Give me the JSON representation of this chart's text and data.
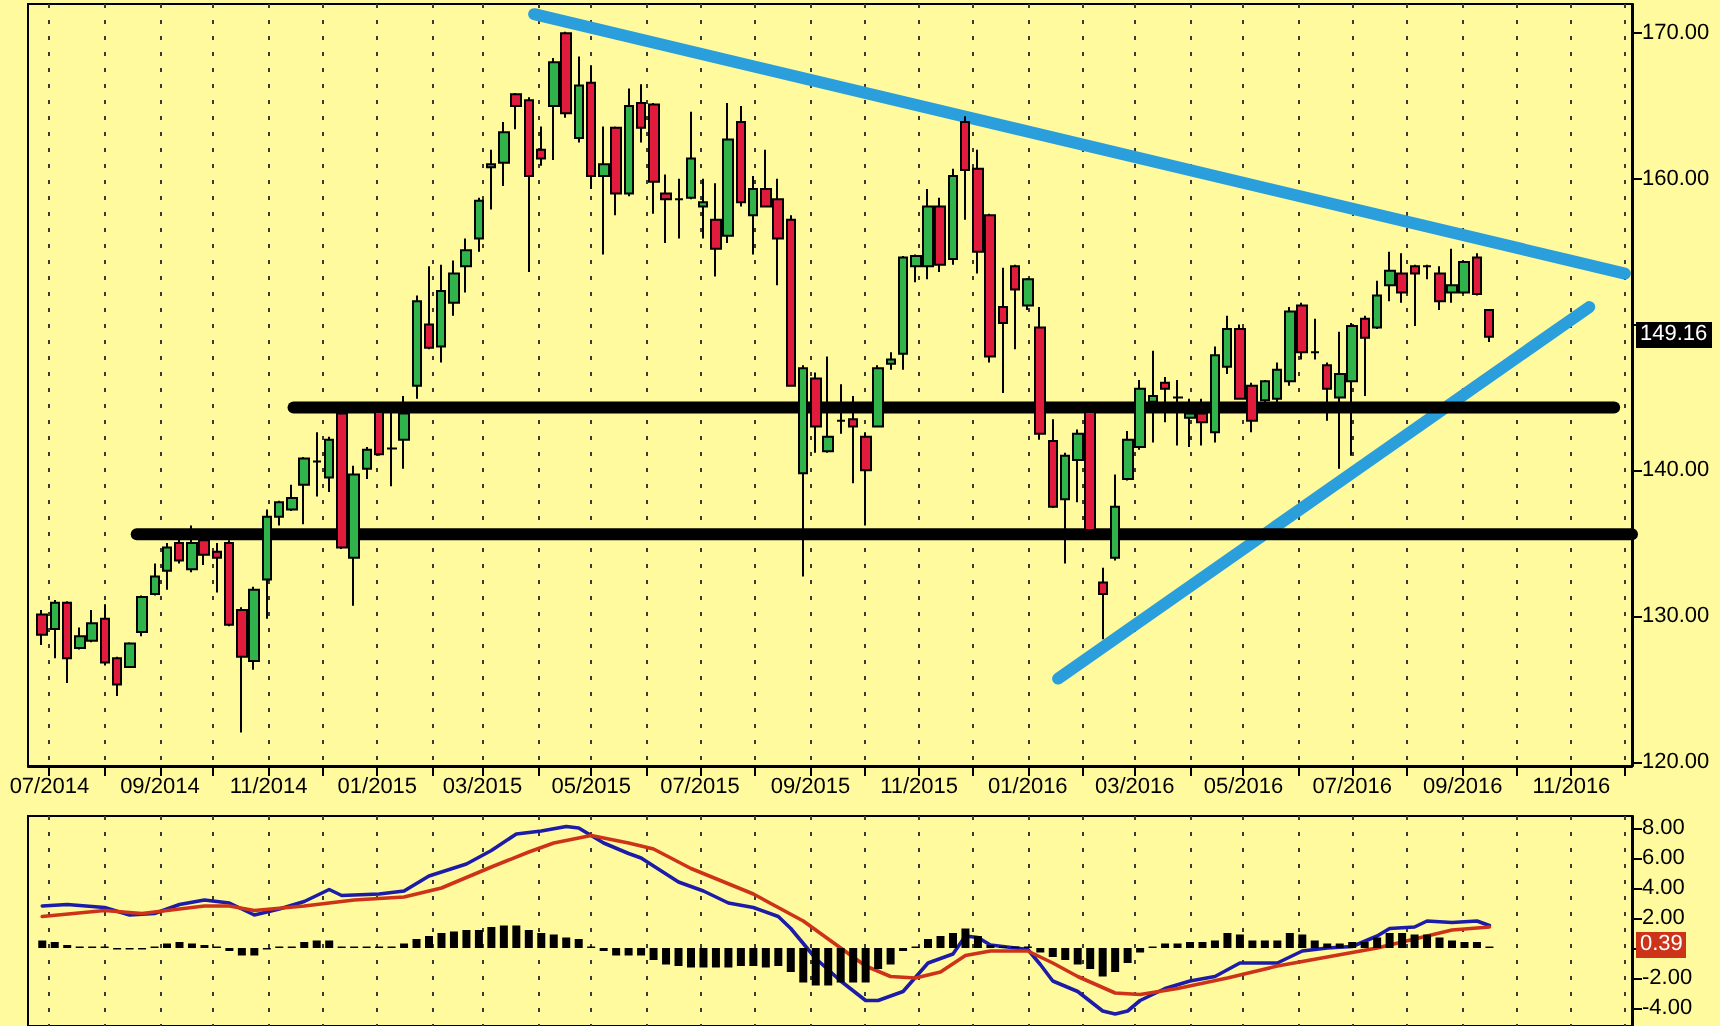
{
  "chart_data": [
    {
      "type": "candlestick",
      "x": [
        "2014-06-27",
        "2014-07-04",
        "2014-07-11",
        "2014-07-18",
        "2014-07-25",
        "2014-08-01",
        "2014-08-08",
        "2014-08-15",
        "2014-08-22",
        "2014-08-29",
        "2014-09-05",
        "2014-09-12",
        "2014-09-19",
        "2014-09-26",
        "2014-10-03",
        "2014-10-10",
        "2014-10-17",
        "2014-10-24",
        "2014-10-31",
        "2014-11-07",
        "2014-11-14",
        "2014-11-21",
        "2014-11-28",
        "2014-12-05",
        "2014-12-12",
        "2014-12-19",
        "2014-12-26",
        "2015-01-02",
        "2015-01-09",
        "2015-01-16",
        "2015-01-23",
        "2015-01-30",
        "2015-02-06",
        "2015-02-13",
        "2015-02-20",
        "2015-02-27",
        "2015-03-06",
        "2015-03-13",
        "2015-03-20",
        "2015-03-27",
        "2015-04-03",
        "2015-04-10",
        "2015-04-17",
        "2015-04-24",
        "2015-05-01",
        "2015-05-08",
        "2015-05-15",
        "2015-05-22",
        "2015-05-29",
        "2015-06-05",
        "2015-06-12",
        "2015-06-19",
        "2015-06-26",
        "2015-07-03",
        "2015-07-10",
        "2015-07-17",
        "2015-07-24",
        "2015-07-31",
        "2015-08-07",
        "2015-08-14",
        "2015-08-21",
        "2015-08-28",
        "2015-09-04",
        "2015-09-11",
        "2015-09-18",
        "2015-09-25",
        "2015-10-02",
        "2015-10-09",
        "2015-10-16",
        "2015-10-23",
        "2015-10-30",
        "2015-11-06",
        "2015-11-13",
        "2015-11-20",
        "2015-11-27",
        "2015-12-04",
        "2015-12-11",
        "2015-12-18",
        "2015-12-25",
        "2016-01-01",
        "2016-01-08",
        "2016-01-15",
        "2016-01-22",
        "2016-01-29",
        "2016-02-05",
        "2016-02-12",
        "2016-02-19",
        "2016-02-26",
        "2016-03-04",
        "2016-03-11",
        "2016-03-18",
        "2016-03-25",
        "2016-04-01",
        "2016-04-08",
        "2016-04-15",
        "2016-04-22",
        "2016-04-29",
        "2016-05-06",
        "2016-05-13",
        "2016-05-20",
        "2016-05-27",
        "2016-06-03",
        "2016-06-10",
        "2016-06-17",
        "2016-06-24",
        "2016-07-01",
        "2016-07-08",
        "2016-07-15",
        "2016-07-22",
        "2016-07-29",
        "2016-08-05",
        "2016-08-12",
        "2016-08-19",
        "2016-08-26",
        "2016-09-02",
        "2016-09-09",
        "2016-09-16"
      ],
      "ohlc": [
        [
          130.1,
          130.4,
          128.0,
          128.7
        ],
        [
          129.1,
          131.1,
          127.1,
          130.9
        ],
        [
          130.9,
          131.0,
          125.4,
          127.1
        ],
        [
          127.8,
          129.2,
          127.7,
          128.6
        ],
        [
          128.3,
          130.4,
          128.2,
          129.5
        ],
        [
          129.8,
          130.8,
          126.6,
          126.8
        ],
        [
          127.1,
          127.2,
          124.5,
          125.3
        ],
        [
          126.5,
          128.2,
          126.5,
          128.1
        ],
        [
          128.9,
          131.4,
          128.6,
          131.3
        ],
        [
          131.5,
          133.6,
          131.4,
          132.7
        ],
        [
          133.1,
          135.0,
          131.8,
          134.7
        ],
        [
          135.0,
          135.7,
          133.6,
          133.8
        ],
        [
          133.2,
          136.2,
          133.0,
          135.0
        ],
        [
          135.2,
          135.9,
          133.5,
          134.2
        ],
        [
          134.4,
          135.0,
          131.6,
          134.0
        ],
        [
          135.0,
          135.2,
          129.3,
          129.4
        ],
        [
          130.4,
          130.6,
          122.0,
          127.2
        ],
        [
          126.9,
          132.0,
          126.3,
          131.8
        ],
        [
          132.5,
          137.3,
          129.8,
          136.8
        ],
        [
          136.8,
          137.9,
          136.2,
          137.8
        ],
        [
          137.3,
          139.0,
          137.2,
          138.1
        ],
        [
          139.0,
          140.9,
          136.3,
          140.8
        ],
        [
          140.6,
          142.6,
          138.2,
          140.6
        ],
        [
          139.5,
          142.3,
          138.5,
          142.1
        ],
        [
          143.9,
          144.0,
          134.6,
          134.7
        ],
        [
          134.0,
          140.3,
          130.7,
          139.7
        ],
        [
          140.1,
          141.6,
          139.4,
          141.4
        ],
        [
          144.0,
          144.6,
          141.0,
          141.1
        ],
        [
          141.5,
          144.0,
          138.9,
          141.5
        ],
        [
          142.1,
          145.1,
          140.1,
          143.9
        ],
        [
          145.8,
          152.0,
          144.9,
          151.6
        ],
        [
          150.0,
          154.0,
          148.3,
          148.4
        ],
        [
          148.5,
          154.1,
          147.4,
          152.3
        ],
        [
          151.5,
          154.4,
          150.6,
          153.5
        ],
        [
          154.0,
          155.9,
          152.2,
          155.1
        ],
        [
          155.9,
          158.7,
          155.0,
          158.5
        ],
        [
          160.8,
          162.0,
          157.9,
          161.0
        ],
        [
          161.1,
          163.9,
          159.5,
          163.2
        ],
        [
          165.8,
          165.9,
          163.4,
          165.0
        ],
        [
          165.4,
          165.6,
          153.6,
          160.2
        ],
        [
          162.0,
          163.6,
          160.9,
          161.4
        ],
        [
          165.0,
          168.3,
          161.3,
          168.0
        ],
        [
          170.0,
          170.1,
          164.2,
          164.5
        ],
        [
          162.8,
          168.4,
          162.5,
          166.4
        ],
        [
          166.6,
          167.8,
          159.3,
          160.2
        ],
        [
          160.2,
          163.6,
          154.8,
          161.0
        ],
        [
          163.5,
          163.6,
          157.5,
          159.0
        ],
        [
          159.0,
          166.2,
          158.8,
          165.0
        ],
        [
          165.2,
          166.5,
          162.5,
          163.5
        ],
        [
          165.1,
          165.2,
          157.6,
          159.8
        ],
        [
          159.0,
          160.3,
          155.6,
          158.6
        ],
        [
          158.6,
          160.0,
          155.9,
          158.6
        ],
        [
          158.7,
          164.6,
          158.6,
          161.4
        ],
        [
          158.1,
          160.0,
          155.9,
          158.4
        ],
        [
          157.2,
          159.7,
          153.3,
          155.2
        ],
        [
          156.1,
          165.2,
          155.6,
          162.7
        ],
        [
          163.9,
          165.0,
          158.1,
          158.4
        ],
        [
          157.5,
          160.2,
          154.8,
          159.3
        ],
        [
          159.3,
          162.0,
          158.1,
          158.1
        ],
        [
          158.6,
          160.0,
          152.7,
          155.9
        ],
        [
          157.2,
          157.5,
          145.8,
          145.8
        ],
        [
          139.8,
          147.2,
          132.7,
          147.0
        ],
        [
          146.3,
          146.7,
          141.2,
          143.0
        ],
        [
          141.3,
          147.8,
          141.2,
          142.3
        ],
        [
          143.4,
          145.9,
          142.5,
          143.4
        ],
        [
          143.5,
          145.1,
          139.1,
          143.0
        ],
        [
          142.3,
          142.6,
          136.2,
          140.0
        ],
        [
          143.0,
          147.2,
          143.0,
          147.0
        ],
        [
          147.3,
          148.1,
          146.9,
          147.6
        ],
        [
          148.0,
          154.7,
          146.9,
          154.6
        ],
        [
          154.0,
          154.8,
          152.9,
          154.7
        ],
        [
          154.0,
          159.3,
          153.1,
          158.1
        ],
        [
          158.1,
          158.7,
          153.6,
          154.1
        ],
        [
          154.5,
          160.7,
          154.1,
          160.2
        ],
        [
          163.9,
          164.3,
          157.2,
          160.6
        ],
        [
          160.7,
          162.0,
          153.5,
          155.0
        ],
        [
          157.5,
          157.6,
          147.4,
          147.8
        ],
        [
          151.2,
          153.9,
          145.3,
          150.1
        ],
        [
          154.0,
          154.1,
          148.3,
          152.4
        ],
        [
          151.3,
          153.2,
          151.0,
          153.1
        ],
        [
          149.8,
          151.2,
          142.1,
          142.5
        ],
        [
          142.0,
          143.5,
          137.4,
          137.5
        ],
        [
          138.0,
          141.2,
          133.6,
          141.0
        ],
        [
          140.7,
          142.8,
          137.8,
          142.5
        ],
        [
          144.0,
          144.0,
          135.7,
          135.9
        ],
        [
          132.3,
          133.3,
          128.4,
          131.5
        ],
        [
          134.0,
          139.7,
          133.8,
          137.5
        ],
        [
          139.4,
          142.7,
          139.3,
          142.1
        ],
        [
          141.6,
          146.2,
          141.4,
          145.6
        ],
        [
          144.7,
          148.2,
          141.9,
          145.1
        ],
        [
          146.0,
          146.4,
          143.3,
          145.6
        ],
        [
          145.0,
          146.2,
          141.7,
          145.0
        ],
        [
          143.6,
          144.9,
          141.6,
          143.9
        ],
        [
          143.9,
          144.9,
          141.7,
          143.3
        ],
        [
          142.6,
          148.5,
          141.9,
          147.9
        ],
        [
          147.1,
          150.6,
          146.6,
          149.7
        ],
        [
          149.7,
          150.0,
          144.9,
          144.9
        ],
        [
          145.8,
          146.0,
          142.6,
          143.4
        ],
        [
          144.8,
          146.2,
          144.6,
          146.1
        ],
        [
          144.9,
          147.4,
          144.6,
          146.9
        ],
        [
          146.1,
          151.2,
          145.8,
          150.9
        ],
        [
          151.3,
          151.5,
          147.6,
          148.1
        ],
        [
          148.1,
          150.4,
          147.6,
          148.1
        ],
        [
          147.2,
          147.4,
          143.4,
          145.6
        ],
        [
          145.0,
          149.5,
          140.1,
          146.6
        ],
        [
          146.1,
          150.1,
          141.0,
          149.9
        ],
        [
          150.4,
          150.6,
          145.1,
          149.1
        ],
        [
          149.8,
          153.0,
          149.7,
          152.0
        ],
        [
          152.7,
          155.0,
          151.6,
          153.7
        ],
        [
          153.5,
          154.9,
          151.5,
          152.2
        ],
        [
          154.0,
          154.1,
          149.9,
          153.5
        ],
        [
          154.0,
          154.1,
          153.1,
          154.0
        ],
        [
          153.5,
          154.0,
          151.0,
          151.6
        ],
        [
          152.2,
          155.2,
          151.5,
          152.7
        ],
        [
          152.2,
          154.4,
          152.1,
          154.3
        ],
        [
          154.6,
          154.9,
          152.0,
          152.1
        ],
        [
          151.0,
          151.0,
          148.8,
          149.16
        ]
      ],
      "colors": [
        "#e01b3c",
        "#2fb34a",
        "#e01b3c",
        "#2fb34a",
        "#2fb34a",
        "#e01b3c",
        "#e01b3c",
        "#2fb34a",
        "#2fb34a",
        "#2fb34a",
        "#2fb34a",
        "#e01b3c",
        "#2fb34a",
        "#e01b3c",
        "#e01b3c",
        "#e01b3c",
        "#e01b3c",
        "#2fb34a",
        "#2fb34a",
        "#2fb34a",
        "#2fb34a",
        "#2fb34a",
        "#000000",
        "#2fb34a",
        "#e01b3c",
        "#2fb34a",
        "#2fb34a",
        "#e01b3c",
        "#000000",
        "#2fb34a",
        "#2fb34a",
        "#e01b3c",
        "#2fb34a",
        "#2fb34a",
        "#2fb34a",
        "#2fb34a",
        "#2fb34a",
        "#2fb34a",
        "#e01b3c",
        "#e01b3c",
        "#e01b3c",
        "#2fb34a",
        "#e01b3c",
        "#2fb34a",
        "#e01b3c",
        "#2fb34a",
        "#e01b3c",
        "#2fb34a",
        "#e01b3c",
        "#e01b3c",
        "#e01b3c",
        "#000000",
        "#2fb34a",
        "#2fb34a",
        "#e01b3c",
        "#2fb34a",
        "#e01b3c",
        "#2fb34a",
        "#e01b3c",
        "#e01b3c",
        "#e01b3c",
        "#2fb34a",
        "#e01b3c",
        "#2fb34a",
        "#000000",
        "#e01b3c",
        "#e01b3c",
        "#2fb34a",
        "#2fb34a",
        "#2fb34a",
        "#2fb34a",
        "#2fb34a",
        "#e01b3c",
        "#2fb34a",
        "#e01b3c",
        "#e01b3c",
        "#e01b3c",
        "#e01b3c",
        "#e01b3c",
        "#2fb34a",
        "#e01b3c",
        "#e01b3c",
        "#2fb34a",
        "#2fb34a",
        "#e01b3c",
        "#e01b3c",
        "#2fb34a",
        "#2fb34a",
        "#2fb34a",
        "#2fb34a",
        "#e01b3c",
        "#000000",
        "#2fb34a",
        "#e01b3c",
        "#2fb34a",
        "#2fb34a",
        "#e01b3c",
        "#e01b3c",
        "#2fb34a",
        "#2fb34a",
        "#2fb34a",
        "#e01b3c",
        "#000000",
        "#e01b3c",
        "#2fb34a",
        "#2fb34a",
        "#e01b3c",
        "#2fb34a",
        "#2fb34a",
        "#e01b3c",
        "#e01b3c",
        "#000000",
        "#e01b3c",
        "#2fb34a",
        "#2fb34a",
        "#e01b3c",
        "#e01b3c"
      ],
      "series": [
        {
          "type": "line",
          "x": [
            "2015-03-30",
            "2016-12-01"
          ],
          "values": [
            171.3,
            153.5
          ],
          "color": "#2a9fdc"
        },
        {
          "type": "line",
          "x": [
            "2016-01-18",
            "2016-11-11"
          ],
          "values": [
            125.7,
            151.2
          ],
          "color": "#2a9fdc"
        },
        {
          "type": "line",
          "x": [
            "2014-11-15",
            "2016-11-25"
          ],
          "values": [
            144.3,
            144.3
          ],
          "color": "#000000"
        },
        {
          "type": "line",
          "x": [
            "2014-08-19",
            "2016-12-05"
          ],
          "values": [
            135.6,
            135.6
          ],
          "color": "#000000"
        }
      ],
      "xlim": [
        "2014-06-19",
        "2016-12-05"
      ],
      "ylim": [
        119.7,
        172.0
      ],
      "xticks": [
        {
          "value": "2014-07-01",
          "label": "07/2014"
        },
        {
          "value": "2014-08-01",
          "label": null
        },
        {
          "value": "2014-09-01",
          "label": "09/2014"
        },
        {
          "value": "2014-10-01",
          "label": null
        },
        {
          "value": "2014-11-01",
          "label": "11/2014"
        },
        {
          "value": "2014-12-01",
          "label": null
        },
        {
          "value": "2015-01-01",
          "label": "01/2015"
        },
        {
          "value": "2015-02-01",
          "label": null
        },
        {
          "value": "2015-03-01",
          "label": "03/2015"
        },
        {
          "value": "2015-04-01",
          "label": null
        },
        {
          "value": "2015-05-01",
          "label": "05/2015"
        },
        {
          "value": "2015-06-01",
          "label": null
        },
        {
          "value": "2015-07-01",
          "label": "07/2015"
        },
        {
          "value": "2015-08-01",
          "label": null
        },
        {
          "value": "2015-09-01",
          "label": "09/2015"
        },
        {
          "value": "2015-10-01",
          "label": null
        },
        {
          "value": "2015-11-01",
          "label": "11/2015"
        },
        {
          "value": "2015-12-01",
          "label": null
        },
        {
          "value": "2016-01-01",
          "label": "01/2016"
        },
        {
          "value": "2016-02-01",
          "label": null
        },
        {
          "value": "2016-03-01",
          "label": "03/2016"
        },
        {
          "value": "2016-04-01",
          "label": null
        },
        {
          "value": "2016-05-01",
          "label": "05/2016"
        },
        {
          "value": "2016-06-01",
          "label": null
        },
        {
          "value": "2016-07-01",
          "label": "07/2016"
        },
        {
          "value": "2016-08-01",
          "label": null
        },
        {
          "value": "2016-09-01",
          "label": "09/2016"
        },
        {
          "value": "2016-10-01",
          "label": null
        },
        {
          "value": "2016-11-01",
          "label": "11/2016"
        },
        {
          "value": "2016-12-01",
          "label": null
        }
      ],
      "yticks": [
        {
          "value": 120,
          "label": "120.00"
        },
        {
          "value": 130,
          "label": "130.00"
        },
        {
          "value": 140,
          "label": "140.00"
        },
        {
          "value": 150,
          "label": null
        },
        {
          "value": 160,
          "label": "160.00"
        },
        {
          "value": 170,
          "label": "170.00"
        }
      ],
      "grid": "x",
      "marker": "none",
      "annotations": [
        "149.16"
      ]
    },
    {
      "type": "bar",
      "x": [
        "2014-06-27",
        "2014-07-04",
        "2014-07-11",
        "2014-07-18",
        "2014-07-25",
        "2014-08-01",
        "2014-08-08",
        "2014-08-15",
        "2014-08-22",
        "2014-08-29",
        "2014-09-05",
        "2014-09-12",
        "2014-09-19",
        "2014-09-26",
        "2014-10-03",
        "2014-10-10",
        "2014-10-17",
        "2014-10-24",
        "2014-10-31",
        "2014-11-07",
        "2014-11-14",
        "2014-11-21",
        "2014-11-28",
        "2014-12-05",
        "2014-12-12",
        "2014-12-19",
        "2014-12-26",
        "2015-01-02",
        "2015-01-09",
        "2015-01-16",
        "2015-01-23",
        "2015-01-30",
        "2015-02-06",
        "2015-02-13",
        "2015-02-20",
        "2015-02-27",
        "2015-03-06",
        "2015-03-13",
        "2015-03-20",
        "2015-03-27",
        "2015-04-03",
        "2015-04-10",
        "2015-04-17",
        "2015-04-24",
        "2015-05-01",
        "2015-05-08",
        "2015-05-15",
        "2015-05-22",
        "2015-05-29",
        "2015-06-05",
        "2015-06-12",
        "2015-06-19",
        "2015-06-26",
        "2015-07-03",
        "2015-07-10",
        "2015-07-17",
        "2015-07-24",
        "2015-07-31",
        "2015-08-07",
        "2015-08-14",
        "2015-08-21",
        "2015-08-28",
        "2015-09-04",
        "2015-09-11",
        "2015-09-18",
        "2015-09-25",
        "2015-10-02",
        "2015-10-09",
        "2015-10-16",
        "2015-10-23",
        "2015-10-30",
        "2015-11-06",
        "2015-11-13",
        "2015-11-20",
        "2015-11-27",
        "2015-12-04",
        "2015-12-11",
        "2015-12-18",
        "2015-12-25",
        "2016-01-01",
        "2016-01-08",
        "2016-01-15",
        "2016-01-22",
        "2016-01-29",
        "2016-02-05",
        "2016-02-12",
        "2016-02-19",
        "2016-02-26",
        "2016-03-04",
        "2016-03-11",
        "2016-03-18",
        "2016-03-25",
        "2016-04-01",
        "2016-04-08",
        "2016-04-15",
        "2016-04-22",
        "2016-04-29",
        "2016-05-06",
        "2016-05-13",
        "2016-05-20",
        "2016-05-27",
        "2016-06-03",
        "2016-06-10",
        "2016-06-17",
        "2016-06-24",
        "2016-07-01",
        "2016-07-08",
        "2016-07-15",
        "2016-07-22",
        "2016-07-29",
        "2016-08-05",
        "2016-08-12",
        "2016-08-19",
        "2016-08-26",
        "2016-09-02",
        "2016-09-09",
        "2016-09-16"
      ],
      "series": [
        {
          "values": [
            0.5,
            0.4,
            0.2,
            0.1,
            0.1,
            0.1,
            -0.1,
            -0.1,
            -0.1,
            0.1,
            0.3,
            0.4,
            0.3,
            0.2,
            0.1,
            -0.2,
            -0.5,
            -0.5,
            -0.1,
            0.1,
            0.1,
            0.4,
            0.5,
            0.5,
            0.1,
            0.1,
            0.1,
            0.1,
            0.1,
            0.3,
            0.6,
            0.8,
            1.0,
            1.1,
            1.2,
            1.2,
            1.4,
            1.5,
            1.5,
            1.2,
            1.0,
            0.9,
            0.7,
            0.6,
            0.1,
            -0.2,
            -0.5,
            -0.5,
            -0.5,
            -0.8,
            -1.1,
            -1.2,
            -1.3,
            -1.3,
            -1.3,
            -1.3,
            -1.2,
            -1.2,
            -1.3,
            -1.2,
            -1.6,
            -2.3,
            -2.5,
            -2.5,
            -2.3,
            -2.3,
            -2.3,
            -1.4,
            -1.1,
            -0.2,
            0.1,
            0.6,
            0.8,
            1.0,
            1.3,
            0.8,
            0.2,
            0.1,
            0.1,
            0.1,
            -0.3,
            -0.6,
            -0.8,
            -1.1,
            -1.4,
            -1.9,
            -1.6,
            -1.0,
            -0.3,
            0.1,
            0.3,
            0.3,
            0.4,
            0.4,
            0.5,
            1.0,
            0.9,
            0.5,
            0.5,
            0.5,
            1.0,
            0.9,
            0.5,
            0.3,
            0.3,
            0.4,
            0.4,
            0.7,
            1.0,
            1.0,
            0.9,
            0.9,
            0.7,
            0.5,
            0.4,
            0.4,
            0.1
          ],
          "color": "#000000"
        },
        {
          "type": "line",
          "x": [
            "2014-06-27",
            "2014-07-11",
            "2014-08-01",
            "2014-08-15",
            "2014-08-29",
            "2014-09-12",
            "2014-09-26",
            "2014-10-10",
            "2014-10-24",
            "2014-11-07",
            "2014-11-21",
            "2014-12-05",
            "2014-12-12",
            "2015-01-02",
            "2015-01-16",
            "2015-01-30",
            "2015-02-20",
            "2015-03-06",
            "2015-03-20",
            "2015-04-03",
            "2015-04-17",
            "2015-04-24",
            "2015-05-08",
            "2015-05-22",
            "2015-05-29",
            "2015-06-19",
            "2015-07-03",
            "2015-07-17",
            "2015-07-31",
            "2015-08-14",
            "2015-08-21",
            "2015-09-04",
            "2015-09-18",
            "2015-10-02",
            "2015-10-09",
            "2015-10-23",
            "2015-11-06",
            "2015-11-20",
            "2015-11-27",
            "2015-12-04",
            "2015-12-11",
            "2015-12-25",
            "2016-01-01",
            "2016-01-08",
            "2016-01-15",
            "2016-01-29",
            "2016-02-12",
            "2016-02-19",
            "2016-02-26",
            "2016-03-04",
            "2016-03-18",
            "2016-04-01",
            "2016-04-15",
            "2016-04-29",
            "2016-05-20",
            "2016-06-03",
            "2016-06-17",
            "2016-07-01",
            "2016-07-15",
            "2016-07-22",
            "2016-08-05",
            "2016-08-12",
            "2016-08-26",
            "2016-09-09",
            "2016-09-16"
          ],
          "values": [
            2.8,
            2.9,
            2.7,
            2.2,
            2.3,
            2.9,
            3.2,
            3.0,
            2.2,
            2.6,
            3.1,
            3.9,
            3.5,
            3.6,
            3.8,
            4.8,
            5.6,
            6.5,
            7.6,
            7.8,
            8.1,
            8.0,
            7.0,
            6.3,
            6.0,
            4.4,
            3.8,
            3.0,
            2.7,
            2.1,
            1.3,
            -0.7,
            -2.2,
            -3.5,
            -3.5,
            -2.9,
            -1.0,
            -0.4,
            0.8,
            0.7,
            0.2,
            0.0,
            -0.1,
            -1.1,
            -2.2,
            -2.9,
            -4.2,
            -4.4,
            -4.2,
            -3.5,
            -2.7,
            -2.2,
            -1.9,
            -1.0,
            -1.0,
            -0.2,
            0.0,
            0.1,
            0.8,
            1.3,
            1.4,
            1.8,
            1.7,
            1.8,
            1.5
          ],
          "color": "#1c1ca8"
        },
        {
          "type": "line",
          "x": [
            "2014-06-27",
            "2014-08-01",
            "2014-08-22",
            "2014-09-26",
            "2014-10-10",
            "2014-10-24",
            "2014-11-21",
            "2014-12-19",
            "2015-01-16",
            "2015-02-06",
            "2015-03-06",
            "2015-03-27",
            "2015-04-10",
            "2015-05-01",
            "2015-05-22",
            "2015-06-05",
            "2015-06-26",
            "2015-07-31",
            "2015-08-28",
            "2015-09-18",
            "2015-10-02",
            "2015-10-16",
            "2015-10-30",
            "2015-11-13",
            "2015-11-27",
            "2015-12-11",
            "2016-01-01",
            "2016-01-15",
            "2016-01-29",
            "2016-02-19",
            "2016-03-04",
            "2016-03-25",
            "2016-04-22",
            "2016-05-20",
            "2016-06-17",
            "2016-07-15",
            "2016-08-05",
            "2016-08-26",
            "2016-09-16"
          ],
          "values": [
            2.1,
            2.5,
            2.3,
            2.8,
            2.8,
            2.5,
            2.8,
            3.2,
            3.4,
            4.0,
            5.4,
            6.4,
            7.0,
            7.5,
            7.0,
            6.6,
            5.3,
            3.6,
            1.8,
            0.0,
            -1.2,
            -1.9,
            -2.0,
            -1.6,
            -0.5,
            -0.2,
            -0.2,
            -1.0,
            -1.9,
            -3.0,
            -3.1,
            -2.7,
            -2.0,
            -1.2,
            -0.6,
            0.0,
            0.6,
            1.2,
            1.4
          ],
          "color": "#cc3318"
        }
      ],
      "xlim": [
        "2014-06-19",
        "2016-12-05"
      ],
      "ylim": [
        -5.2,
        8.8
      ],
      "xticks": [
        {
          "value": "2014-07-01",
          "label": null
        },
        {
          "value": "2014-08-01",
          "label": null
        },
        {
          "value": "2014-09-01",
          "label": null
        },
        {
          "value": "2014-10-01",
          "label": null
        },
        {
          "value": "2014-11-01",
          "label": null
        },
        {
          "value": "2014-12-01",
          "label": null
        },
        {
          "value": "2015-01-01",
          "label": null
        },
        {
          "value": "2015-02-01",
          "label": null
        },
        {
          "value": "2015-03-01",
          "label": null
        },
        {
          "value": "2015-04-01",
          "label": null
        },
        {
          "value": "2015-05-01",
          "label": null
        },
        {
          "value": "2015-06-01",
          "label": null
        },
        {
          "value": "2015-07-01",
          "label": null
        },
        {
          "value": "2015-08-01",
          "label": null
        },
        {
          "value": "2015-09-01",
          "label": null
        },
        {
          "value": "2015-10-01",
          "label": null
        },
        {
          "value": "2015-11-01",
          "label": null
        },
        {
          "value": "2015-12-01",
          "label": null
        },
        {
          "value": "2016-01-01",
          "label": null
        },
        {
          "value": "2016-02-01",
          "label": null
        },
        {
          "value": "2016-03-01",
          "label": null
        },
        {
          "value": "2016-04-01",
          "label": null
        },
        {
          "value": "2016-05-01",
          "label": null
        },
        {
          "value": "2016-06-01",
          "label": null
        },
        {
          "value": "2016-07-01",
          "label": null
        },
        {
          "value": "2016-08-01",
          "label": null
        },
        {
          "value": "2016-09-01",
          "label": null
        },
        {
          "value": "2016-10-01",
          "label": null
        },
        {
          "value": "2016-11-01",
          "label": null
        },
        {
          "value": "2016-12-01",
          "label": null
        }
      ],
      "yticks": [
        {
          "value": -4,
          "label": "-4.00"
        },
        {
          "value": -2,
          "label": "-2.00"
        },
        {
          "value": 0,
          "label": null
        },
        {
          "value": 2,
          "label": "2.00"
        },
        {
          "value": 4,
          "label": "4.00"
        },
        {
          "value": 6,
          "label": "6.00"
        },
        {
          "value": 8,
          "label": "8.00"
        }
      ],
      "tick_labels": "y",
      "grid": "x",
      "marker": "none",
      "annotations": [
        "0.39"
      ]
    }
  ]
}
